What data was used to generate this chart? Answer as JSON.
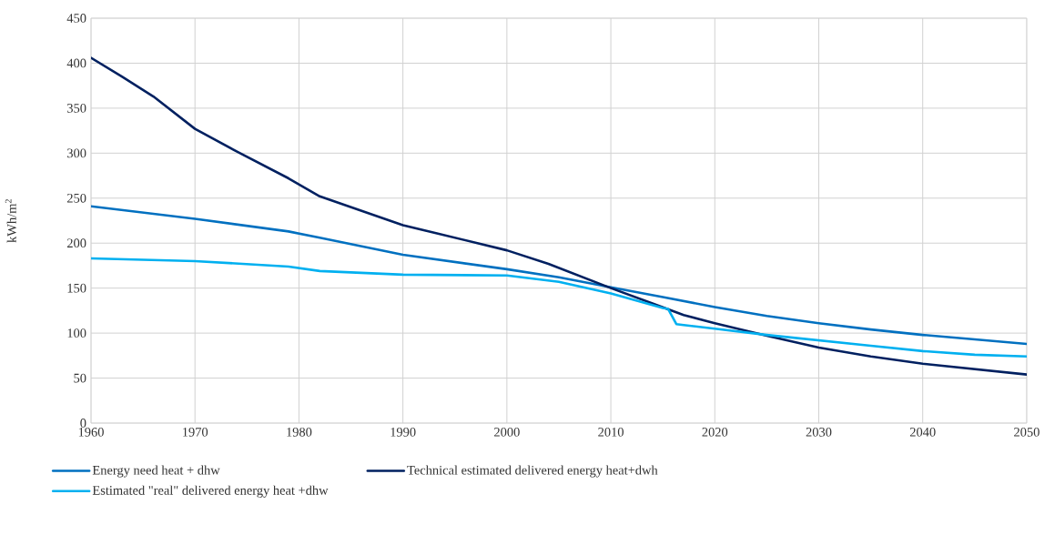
{
  "chart_data": {
    "type": "line",
    "ylabel": "kWh/m$^{2}$",
    "xlim": [
      1960,
      2050
    ],
    "ylim": [
      0,
      450
    ],
    "xticks": [
      1960,
      1970,
      1980,
      1990,
      2000,
      2010,
      2020,
      2030,
      2040,
      2050
    ],
    "yticks": [
      0,
      50,
      100,
      150,
      200,
      250,
      300,
      350,
      400,
      450
    ],
    "grid": true,
    "legend": "bottom",
    "marker": "none",
    "line_style": "solid",
    "series": [
      {
        "name": "Energy need heat + dhw",
        "color": "#0070c0",
        "x": [
          1960,
          1970,
          1979,
          1982,
          1990,
          2000,
          2005,
          2010,
          2015,
          2020,
          2025,
          2030,
          2035,
          2040,
          2045,
          2050
        ],
        "values": [
          241,
          227,
          213,
          206,
          187,
          171,
          162,
          151,
          140,
          129,
          119,
          111,
          104,
          98,
          93,
          88
        ]
      },
      {
        "name": "Technical estimated delivered energy  heat+dwh",
        "color": "#002060",
        "x": [
          1960,
          1963,
          1966,
          1970,
          1974,
          1979,
          1982,
          1990,
          2000,
          2004,
          2010,
          2014,
          2017,
          2020,
          2025,
          2030,
          2035,
          2040,
          2045,
          2050
        ],
        "values": [
          406,
          385,
          363,
          327,
          302,
          272,
          252,
          220,
          192,
          177,
          150,
          133,
          120,
          111,
          97,
          84,
          74,
          66,
          60,
          54
        ]
      },
      {
        "name": "Estimated \"real\" delivered energy heat +dhw",
        "color": "#00b0f0",
        "x": [
          1960,
          1970,
          1979,
          1982,
          1990,
          2000,
          2005,
          2010,
          2015,
          2015.5,
          2016.3,
          2017,
          2020,
          2025,
          2030,
          2035,
          2040,
          2045,
          2050
        ],
        "values": [
          183,
          180,
          174,
          169,
          165,
          164,
          157,
          144,
          128,
          127,
          110,
          109,
          105,
          98,
          92,
          86,
          80,
          76,
          74
        ]
      }
    ]
  }
}
